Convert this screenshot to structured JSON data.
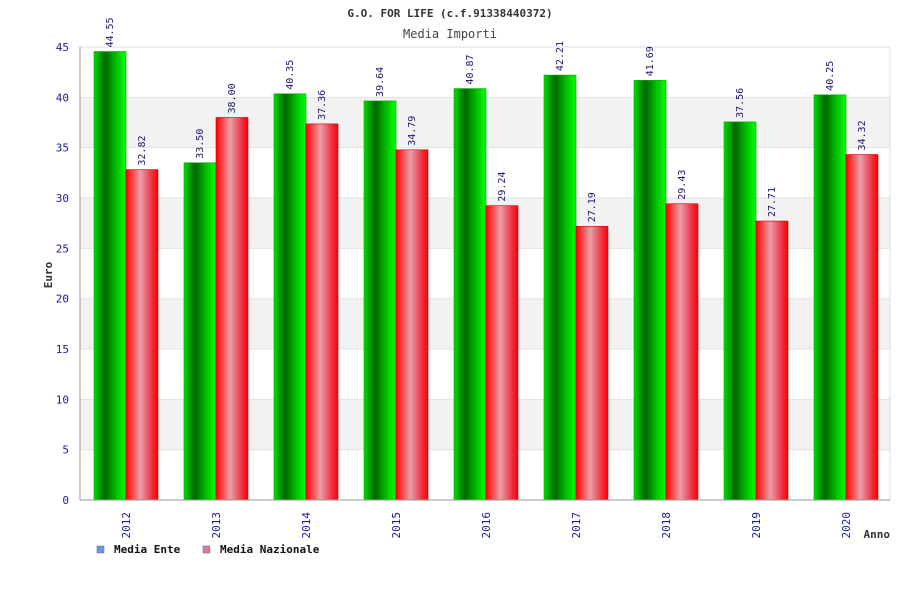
{
  "chart_data": {
    "type": "bar",
    "title": "G.O. FOR LIFE (c.f.91338440372)",
    "subtitle": "Media Importi",
    "xlabel": "Anno",
    "ylabel": "Euro",
    "ylim": [
      0,
      45
    ],
    "yticks": [
      "0",
      "5",
      "10",
      "15",
      "20",
      "25",
      "30",
      "35",
      "40",
      "45"
    ],
    "categories": [
      "2012",
      "2013",
      "2014",
      "2015",
      "2016",
      "2017",
      "2018",
      "2019",
      "2020"
    ],
    "series": [
      {
        "name": "Media Ente",
        "values": [
          44.55,
          33.5,
          40.35,
          39.64,
          40.87,
          42.21,
          41.69,
          37.56,
          40.25
        ],
        "labels": [
          "44.55",
          "33.50",
          "40.35",
          "39.64",
          "40.87",
          "42.21",
          "41.69",
          "37.56",
          "40.25"
        ],
        "color": "#00cc00",
        "legend_color": "#6699ee"
      },
      {
        "name": "Media Nazionale",
        "values": [
          32.82,
          38.0,
          37.36,
          34.79,
          29.24,
          27.19,
          29.43,
          27.71,
          34.32
        ],
        "labels": [
          "32.82",
          "38.00",
          "37.36",
          "34.79",
          "29.24",
          "27.19",
          "29.43",
          "27.71",
          "34.32"
        ],
        "color": "#ff0000",
        "legend_color": "#dd77aa"
      }
    ],
    "grid": true,
    "legend": "bottom-left"
  }
}
